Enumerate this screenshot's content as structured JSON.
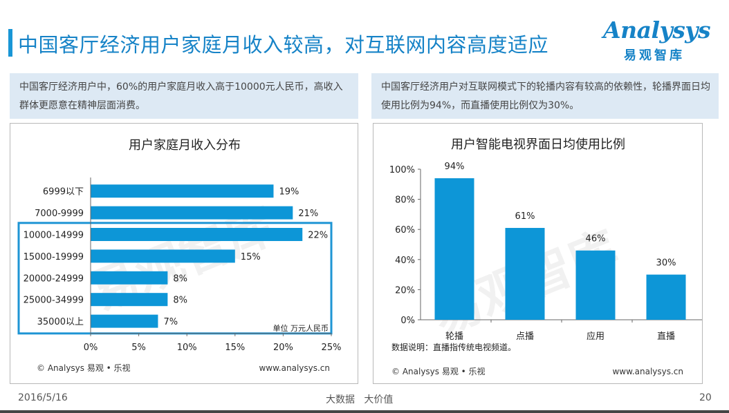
{
  "page": {
    "title": "中国客厅经济用户家庭月收入较高，对互联网内容高度适应",
    "date": "2016/5/16",
    "slogan": "大数据   大价值",
    "page_number": "20"
  },
  "logo": {
    "word": "Analysys",
    "cn": "易观智库"
  },
  "left_desc": "中国客厅经济用户中，60%的用户家庭月收入高于10000元人民币，高收入群体更愿意在精神层面消费。",
  "right_desc": "中国客厅经济用户对互联网模式下的轮播内容有较高的依赖性，轮播界面日均使用比例为94%，而直播使用比例仅为30%。",
  "watermark": "易观智库",
  "colors": {
    "bar": "#0d96d7",
    "highlight_box": "#1e95d4",
    "accent": "#1683c7"
  },
  "chart_data": [
    {
      "type": "bar",
      "orientation": "horizontal",
      "title": "用户家庭月收入分布",
      "categories": [
        "6999以下",
        "7000-9999",
        "10000-14999",
        "15000-19999",
        "20000-24999",
        "25000-34999",
        "35000以上"
      ],
      "values": [
        19,
        21,
        22,
        15,
        8,
        8,
        7
      ],
      "value_labels": [
        "19%",
        "21%",
        "22%",
        "15%",
        "8%",
        "8%",
        "7%"
      ],
      "x_ticks": [
        "0%",
        "5%",
        "10%",
        "15%",
        "20%",
        "25%"
      ],
      "xlim": [
        0,
        25
      ],
      "unit_note": "单位  万元人民币",
      "highlight_categories": [
        "10000-14999",
        "15000-19999",
        "20000-24999",
        "25000-34999",
        "35000以上"
      ],
      "source": "© Analysys 易观 • 乐视",
      "url": "www.analysys.cn"
    },
    {
      "type": "bar",
      "orientation": "vertical",
      "title": "用户智能电视界面日均使用比例",
      "categories": [
        "轮播",
        "点播",
        "应用",
        "直播"
      ],
      "values": [
        94,
        61,
        46,
        30
      ],
      "value_labels": [
        "94%",
        "61%",
        "46%",
        "30%"
      ],
      "y_ticks": [
        "100%",
        "80%",
        "60%",
        "40%",
        "20%",
        "0%"
      ],
      "ylim": [
        0,
        100
      ],
      "note": "数据说明：直播指传统电视频道。",
      "source": "© Analysys 易观 • 乐视",
      "url": "www.analysys.cn"
    }
  ]
}
